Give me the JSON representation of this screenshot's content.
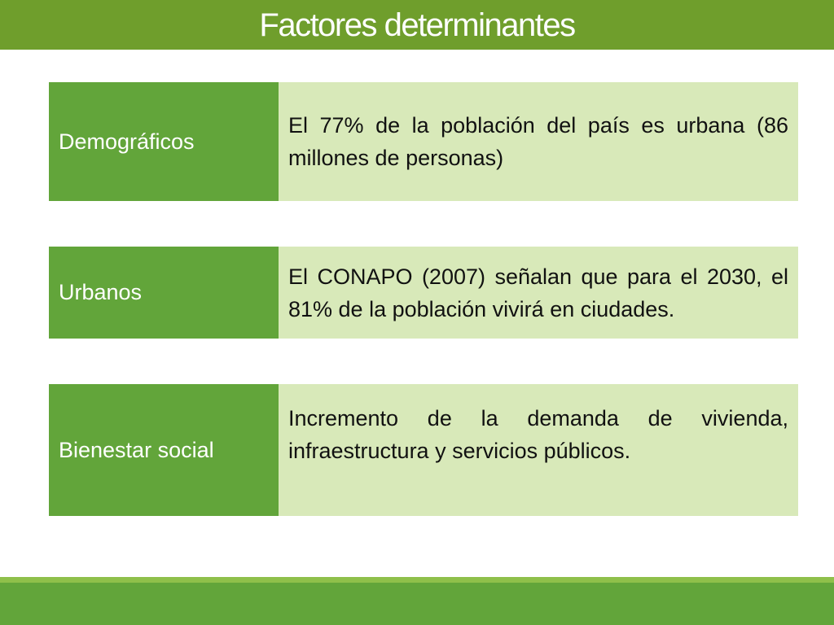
{
  "title": "Factores determinantes",
  "rows": [
    {
      "label": "Demográficos",
      "text": "El 77% de la población del país es urbana (86 millones de personas)"
    },
    {
      "label": "Urbanos",
      "text": "El CONAPO (2007) señalan que para el 2030, el 81% de la población vivirá en ciudades."
    },
    {
      "label": "Bienestar social",
      "text": "Incremento de la demanda de vivienda, infraestructura y servicios públicos."
    }
  ],
  "colors": {
    "title_bar": "#6f9e2c",
    "label_cell": "#62a53a",
    "text_cell": "#d8e9b9",
    "bottom_bar": "#62a53a"
  }
}
